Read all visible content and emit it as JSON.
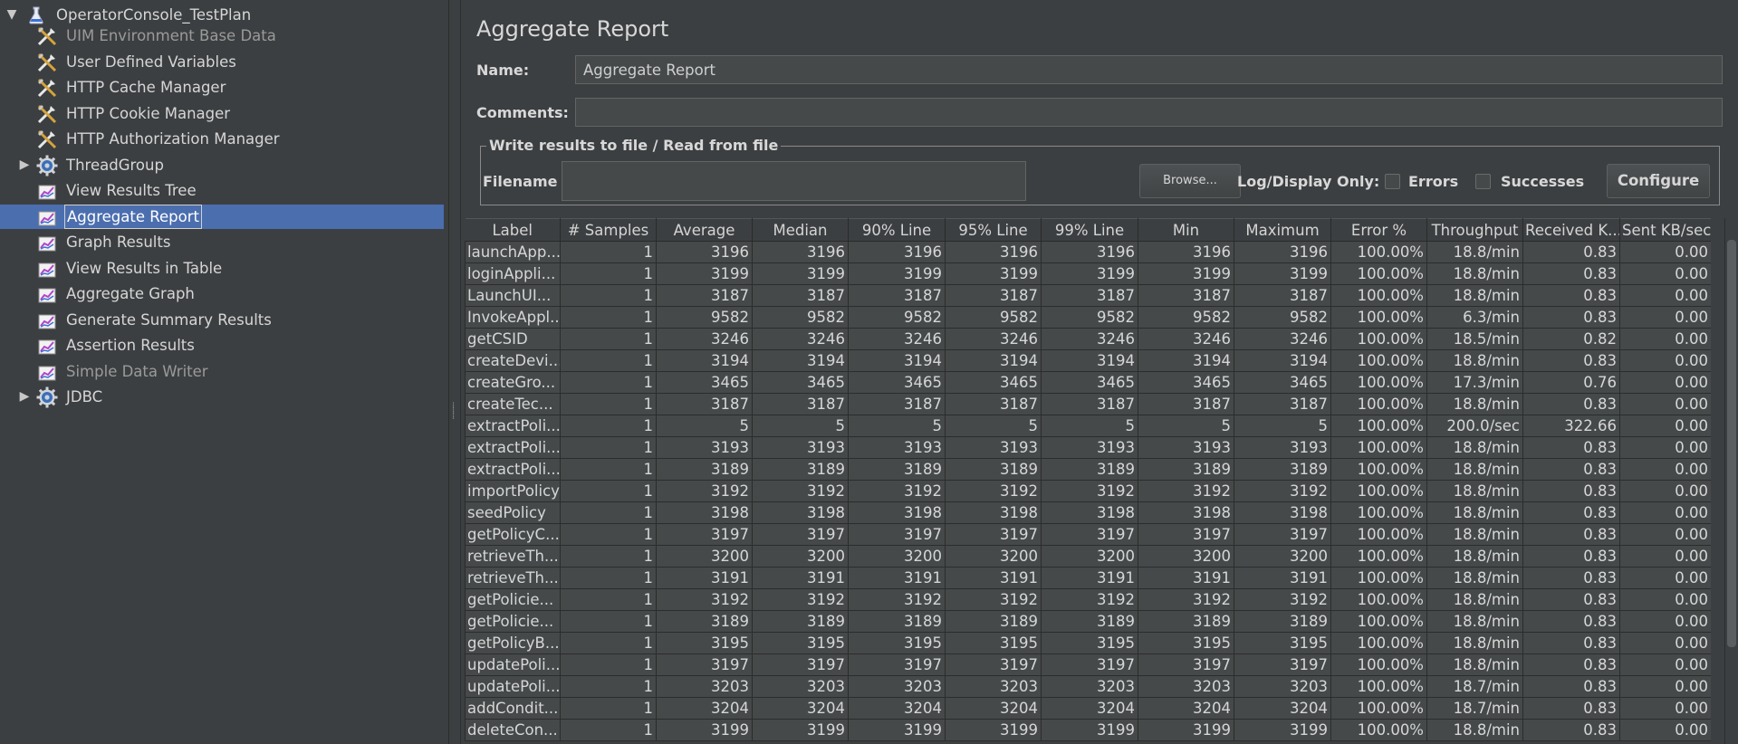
{
  "tree": {
    "root": "OperatorConsole_TestPlan",
    "items": [
      {
        "label": "UIM Environment Base Data",
        "dim": true
      },
      {
        "label": "User Defined Variables"
      },
      {
        "label": "HTTP Cache Manager"
      },
      {
        "label": "HTTP Cookie Manager"
      },
      {
        "label": "HTTP Authorization Manager"
      },
      {
        "label": "ThreadGroup"
      },
      {
        "label": "View Results Tree"
      },
      {
        "label": "Aggregate Report"
      },
      {
        "label": "Graph Results"
      },
      {
        "label": "View Results in Table"
      },
      {
        "label": "Aggregate Graph"
      },
      {
        "label": "Generate Summary Results"
      },
      {
        "label": "Assertion Results"
      },
      {
        "label": "Simple Data Writer",
        "dim": true
      },
      {
        "label": "JDBC"
      }
    ]
  },
  "panel": {
    "title": "Aggregate Report",
    "name_label": "Name:",
    "name_value": "Aggregate Report",
    "comments_label": "Comments:",
    "comments_value": "",
    "file_group": "Write results to file / Read from file",
    "filename_label": "Filename",
    "filename_value": "",
    "browse": "Browse...",
    "log_only": "Log/Display Only:",
    "errors": "Errors",
    "successes": "Successes",
    "configure": "Configure"
  },
  "table": {
    "columns": [
      "Label",
      "# Samples",
      "Average",
      "Median",
      "90% Line",
      "95% Line",
      "99% Line",
      "Min",
      "Maximum",
      "Error %",
      "Throughput",
      "Received K...",
      "Sent KB/sec"
    ],
    "rows": [
      [
        "launchApp...",
        "1",
        "3196",
        "3196",
        "3196",
        "3196",
        "3196",
        "3196",
        "3196",
        "100.00%",
        "18.8/min",
        "0.83",
        "0.00"
      ],
      [
        "loginAppli...",
        "1",
        "3199",
        "3199",
        "3199",
        "3199",
        "3199",
        "3199",
        "3199",
        "100.00%",
        "18.8/min",
        "0.83",
        "0.00"
      ],
      [
        "LaunchUI...",
        "1",
        "3187",
        "3187",
        "3187",
        "3187",
        "3187",
        "3187",
        "3187",
        "100.00%",
        "18.8/min",
        "0.83",
        "0.00"
      ],
      [
        "InvokeAppl...",
        "1",
        "9582",
        "9582",
        "9582",
        "9582",
        "9582",
        "9582",
        "9582",
        "100.00%",
        "6.3/min",
        "0.83",
        "0.00"
      ],
      [
        "getCSID",
        "1",
        "3246",
        "3246",
        "3246",
        "3246",
        "3246",
        "3246",
        "3246",
        "100.00%",
        "18.5/min",
        "0.82",
        "0.00"
      ],
      [
        "createDevi...",
        "1",
        "3194",
        "3194",
        "3194",
        "3194",
        "3194",
        "3194",
        "3194",
        "100.00%",
        "18.8/min",
        "0.83",
        "0.00"
      ],
      [
        "createGro...",
        "1",
        "3465",
        "3465",
        "3465",
        "3465",
        "3465",
        "3465",
        "3465",
        "100.00%",
        "17.3/min",
        "0.76",
        "0.00"
      ],
      [
        "createTec...",
        "1",
        "3187",
        "3187",
        "3187",
        "3187",
        "3187",
        "3187",
        "3187",
        "100.00%",
        "18.8/min",
        "0.83",
        "0.00"
      ],
      [
        "extractPoli...",
        "1",
        "5",
        "5",
        "5",
        "5",
        "5",
        "5",
        "5",
        "100.00%",
        "200.0/sec",
        "322.66",
        "0.00"
      ],
      [
        "extractPoli...",
        "1",
        "3193",
        "3193",
        "3193",
        "3193",
        "3193",
        "3193",
        "3193",
        "100.00%",
        "18.8/min",
        "0.83",
        "0.00"
      ],
      [
        "extractPoli...",
        "1",
        "3189",
        "3189",
        "3189",
        "3189",
        "3189",
        "3189",
        "3189",
        "100.00%",
        "18.8/min",
        "0.83",
        "0.00"
      ],
      [
        "importPolicy",
        "1",
        "3192",
        "3192",
        "3192",
        "3192",
        "3192",
        "3192",
        "3192",
        "100.00%",
        "18.8/min",
        "0.83",
        "0.00"
      ],
      [
        "seedPolicy",
        "1",
        "3198",
        "3198",
        "3198",
        "3198",
        "3198",
        "3198",
        "3198",
        "100.00%",
        "18.8/min",
        "0.83",
        "0.00"
      ],
      [
        "getPolicyC...",
        "1",
        "3197",
        "3197",
        "3197",
        "3197",
        "3197",
        "3197",
        "3197",
        "100.00%",
        "18.8/min",
        "0.83",
        "0.00"
      ],
      [
        "retrieveTh...",
        "1",
        "3200",
        "3200",
        "3200",
        "3200",
        "3200",
        "3200",
        "3200",
        "100.00%",
        "18.8/min",
        "0.83",
        "0.00"
      ],
      [
        "retrieveTh...",
        "1",
        "3191",
        "3191",
        "3191",
        "3191",
        "3191",
        "3191",
        "3191",
        "100.00%",
        "18.8/min",
        "0.83",
        "0.00"
      ],
      [
        "getPolicie...",
        "1",
        "3192",
        "3192",
        "3192",
        "3192",
        "3192",
        "3192",
        "3192",
        "100.00%",
        "18.8/min",
        "0.83",
        "0.00"
      ],
      [
        "getPolicie...",
        "1",
        "3189",
        "3189",
        "3189",
        "3189",
        "3189",
        "3189",
        "3189",
        "100.00%",
        "18.8/min",
        "0.83",
        "0.00"
      ],
      [
        "getPolicyB...",
        "1",
        "3195",
        "3195",
        "3195",
        "3195",
        "3195",
        "3195",
        "3195",
        "100.00%",
        "18.8/min",
        "0.83",
        "0.00"
      ],
      [
        "updatePoli...",
        "1",
        "3197",
        "3197",
        "3197",
        "3197",
        "3197",
        "3197",
        "3197",
        "100.00%",
        "18.8/min",
        "0.83",
        "0.00"
      ],
      [
        "updatePoli...",
        "1",
        "3203",
        "3203",
        "3203",
        "3203",
        "3203",
        "3203",
        "3203",
        "100.00%",
        "18.7/min",
        "0.83",
        "0.00"
      ],
      [
        "addCondit...",
        "1",
        "3204",
        "3204",
        "3204",
        "3204",
        "3204",
        "3204",
        "3204",
        "100.00%",
        "18.7/min",
        "0.83",
        "0.00"
      ],
      [
        "deleteCon...",
        "1",
        "3199",
        "3199",
        "3199",
        "3199",
        "3199",
        "3199",
        "3199",
        "100.00%",
        "18.8/min",
        "0.83",
        "0.00"
      ]
    ]
  },
  "colors": {
    "background": "#3c3f41",
    "selection": "#4b6eaf",
    "cell": "#45494a",
    "text": "#d6d6d6"
  }
}
